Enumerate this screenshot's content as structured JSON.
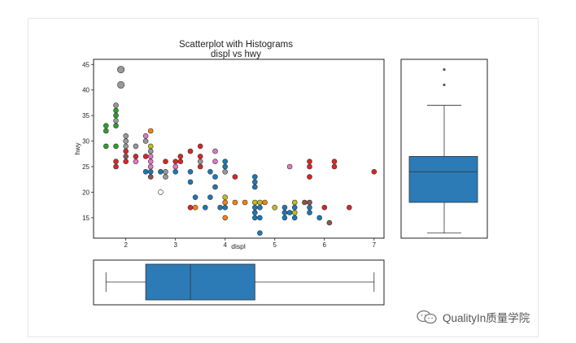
{
  "chart_data": {
    "type": "scatter",
    "title_line1": "Scatterplot with Histograms",
    "title_line2": "displ vs hwy",
    "xlabel": "displ",
    "ylabel": "hwy",
    "xlim": [
      1.35,
      7.2
    ],
    "ylim": [
      11,
      46
    ],
    "xticks": [
      2,
      3,
      4,
      5,
      6,
      7
    ],
    "yticks": [
      15,
      20,
      25,
      30,
      35,
      40,
      45
    ],
    "points": [
      {
        "x": 1.6,
        "y": 29,
        "c": "#2ca02c"
      },
      {
        "x": 1.6,
        "y": 32,
        "c": "#2ca02c"
      },
      {
        "x": 1.6,
        "y": 33,
        "c": "#2ca02c"
      },
      {
        "x": 1.8,
        "y": 29,
        "c": "#2ca02c"
      },
      {
        "x": 1.8,
        "y": 33,
        "c": "#2ca02c"
      },
      {
        "x": 1.8,
        "y": 35,
        "c": "#2ca02c"
      },
      {
        "x": 1.8,
        "y": 36,
        "c": "#2ca02c"
      },
      {
        "x": 1.8,
        "y": 26,
        "c": "#d62728"
      },
      {
        "x": 1.8,
        "y": 25,
        "c": "#d62728"
      },
      {
        "x": 1.8,
        "y": 34,
        "c": "#999999"
      },
      {
        "x": 1.8,
        "y": 37,
        "c": "#999999"
      },
      {
        "x": 1.9,
        "y": 44,
        "c": "#999999"
      },
      {
        "x": 1.9,
        "y": 41,
        "c": "#999999"
      },
      {
        "x": 2.0,
        "y": 26,
        "c": "#d62728"
      },
      {
        "x": 2.0,
        "y": 28,
        "c": "#d62728"
      },
      {
        "x": 2.0,
        "y": 30,
        "c": "#999999"
      },
      {
        "x": 2.0,
        "y": 31,
        "c": "#999999"
      },
      {
        "x": 2.0,
        "y": 29,
        "c": "#999999"
      },
      {
        "x": 2.0,
        "y": 27,
        "c": "#8c564b"
      },
      {
        "x": 2.2,
        "y": 26,
        "c": "#e377c2"
      },
      {
        "x": 2.2,
        "y": 27,
        "c": "#d62728"
      },
      {
        "x": 2.2,
        "y": 29,
        "c": "#999999"
      },
      {
        "x": 2.4,
        "y": 24,
        "c": "#1f77b4"
      },
      {
        "x": 2.4,
        "y": 27,
        "c": "#d62728"
      },
      {
        "x": 2.4,
        "y": 30,
        "c": "#999999"
      },
      {
        "x": 2.4,
        "y": 31,
        "c": "#e377c2"
      },
      {
        "x": 2.5,
        "y": 25,
        "c": "#e377c2"
      },
      {
        "x": 2.5,
        "y": 26,
        "c": "#e377c2"
      },
      {
        "x": 2.5,
        "y": 27,
        "c": "#e377c2"
      },
      {
        "x": 2.5,
        "y": 28,
        "c": "#999999"
      },
      {
        "x": 2.5,
        "y": 32,
        "c": "#ff7f0e"
      },
      {
        "x": 2.5,
        "y": 29,
        "c": "#bcbd22"
      },
      {
        "x": 2.5,
        "y": 24,
        "c": "#1f77b4"
      },
      {
        "x": 2.5,
        "y": 23,
        "c": "#8c564b"
      },
      {
        "x": 2.7,
        "y": 24,
        "c": "#1f77b4"
      },
      {
        "x": 2.7,
        "y": 20,
        "c": "#ffffff"
      },
      {
        "x": 2.8,
        "y": 26,
        "c": "#d62728"
      },
      {
        "x": 2.8,
        "y": 23,
        "c": "#999999"
      },
      {
        "x": 2.8,
        "y": 24,
        "c": "#999999"
      },
      {
        "x": 3.0,
        "y": 26,
        "c": "#d62728"
      },
      {
        "x": 3.0,
        "y": 24,
        "c": "#1f77b4"
      },
      {
        "x": 3.0,
        "y": 25,
        "c": "#e377c2"
      },
      {
        "x": 3.1,
        "y": 27,
        "c": "#d62728"
      },
      {
        "x": 3.1,
        "y": 26,
        "c": "#d62728"
      },
      {
        "x": 3.3,
        "y": 28,
        "c": "#d62728"
      },
      {
        "x": 3.3,
        "y": 24,
        "c": "#1f77b4"
      },
      {
        "x": 3.3,
        "y": 22,
        "c": "#1f77b4"
      },
      {
        "x": 3.3,
        "y": 17,
        "c": "#d62728"
      },
      {
        "x": 3.4,
        "y": 17,
        "c": "#ff7f0e"
      },
      {
        "x": 3.4,
        "y": 19,
        "c": "#1f77b4"
      },
      {
        "x": 3.5,
        "y": 29,
        "c": "#d62728"
      },
      {
        "x": 3.5,
        "y": 27,
        "c": "#d62728"
      },
      {
        "x": 3.5,
        "y": 26,
        "c": "#999999"
      },
      {
        "x": 3.5,
        "y": 25,
        "c": "#d62728"
      },
      {
        "x": 3.6,
        "y": 17,
        "c": "#1f77b4"
      },
      {
        "x": 3.7,
        "y": 19,
        "c": "#1f77b4"
      },
      {
        "x": 3.7,
        "y": 24,
        "c": "#1f77b4"
      },
      {
        "x": 3.8,
        "y": 28,
        "c": "#e377c2"
      },
      {
        "x": 3.8,
        "y": 26,
        "c": "#e377c2"
      },
      {
        "x": 3.8,
        "y": 23,
        "c": "#1f77b4"
      },
      {
        "x": 3.8,
        "y": 21,
        "c": "#1f77b4"
      },
      {
        "x": 3.9,
        "y": 17,
        "c": "#1f77b4"
      },
      {
        "x": 4.0,
        "y": 17,
        "c": "#1f77b4"
      },
      {
        "x": 4.0,
        "y": 19,
        "c": "#bcbd22"
      },
      {
        "x": 4.0,
        "y": 18,
        "c": "#ff7f0e"
      },
      {
        "x": 4.0,
        "y": 25,
        "c": "#1f77b4"
      },
      {
        "x": 4.0,
        "y": 24,
        "c": "#999999"
      },
      {
        "x": 4.0,
        "y": 26,
        "c": "#1f77b4"
      },
      {
        "x": 4.0,
        "y": 15,
        "c": "#ff7f0e"
      },
      {
        "x": 4.2,
        "y": 18,
        "c": "#ff7f0e"
      },
      {
        "x": 4.2,
        "y": 23,
        "c": "#d62728"
      },
      {
        "x": 4.4,
        "y": 18,
        "c": "#ff7f0e"
      },
      {
        "x": 4.6,
        "y": 17,
        "c": "#1f77b4"
      },
      {
        "x": 4.6,
        "y": 16,
        "c": "#1f77b4"
      },
      {
        "x": 4.6,
        "y": 15,
        "c": "#1f77b4"
      },
      {
        "x": 4.6,
        "y": 18,
        "c": "#bcbd22"
      },
      {
        "x": 4.6,
        "y": 21,
        "c": "#1f77b4"
      },
      {
        "x": 4.6,
        "y": 22,
        "c": "#1f77b4"
      },
      {
        "x": 4.6,
        "y": 23,
        "c": "#1f77b4"
      },
      {
        "x": 4.7,
        "y": 18,
        "c": "#bcbd22"
      },
      {
        "x": 4.7,
        "y": 17,
        "c": "#1f77b4"
      },
      {
        "x": 4.7,
        "y": 15,
        "c": "#1f77b4"
      },
      {
        "x": 4.7,
        "y": 12,
        "c": "#1f77b4"
      },
      {
        "x": 4.8,
        "y": 18,
        "c": "#ff7f0e"
      },
      {
        "x": 5.0,
        "y": 17,
        "c": "#bcbd22"
      },
      {
        "x": 5.2,
        "y": 16,
        "c": "#1f77b4"
      },
      {
        "x": 5.2,
        "y": 15,
        "c": "#1f77b4"
      },
      {
        "x": 5.2,
        "y": 17,
        "c": "#1f77b4"
      },
      {
        "x": 5.3,
        "y": 16,
        "c": "#1f77b4"
      },
      {
        "x": 5.3,
        "y": 25,
        "c": "#e377c2"
      },
      {
        "x": 5.4,
        "y": 17,
        "c": "#1f77b4"
      },
      {
        "x": 5.4,
        "y": 16,
        "c": "#bcbd22"
      },
      {
        "x": 5.4,
        "y": 18,
        "c": "#bcbd22"
      },
      {
        "x": 5.4,
        "y": 15,
        "c": "#1f77b4"
      },
      {
        "x": 5.6,
        "y": 18,
        "c": "#8c564b"
      },
      {
        "x": 5.7,
        "y": 17,
        "c": "#1f77b4"
      },
      {
        "x": 5.7,
        "y": 16,
        "c": "#1f77b4"
      },
      {
        "x": 5.7,
        "y": 23,
        "c": "#d62728"
      },
      {
        "x": 5.7,
        "y": 25,
        "c": "#d62728"
      },
      {
        "x": 5.7,
        "y": 26,
        "c": "#d62728"
      },
      {
        "x": 5.7,
        "y": 18,
        "c": "#8c564b"
      },
      {
        "x": 5.9,
        "y": 15,
        "c": "#1f77b4"
      },
      {
        "x": 6.0,
        "y": 17,
        "c": "#d62728"
      },
      {
        "x": 6.1,
        "y": 14,
        "c": "#8c564b"
      },
      {
        "x": 6.2,
        "y": 25,
        "c": "#d62728"
      },
      {
        "x": 6.2,
        "y": 26,
        "c": "#d62728"
      },
      {
        "x": 6.5,
        "y": 17,
        "c": "#d62728"
      },
      {
        "x": 7.0,
        "y": 24,
        "c": "#d62728"
      }
    ],
    "boxplot_hwy": {
      "min": 12,
      "q1": 18,
      "median": 24,
      "q3": 27,
      "max": 37,
      "outliers": [
        41,
        44
      ]
    },
    "boxplot_displ": {
      "min": 1.6,
      "q1": 2.4,
      "median": 3.3,
      "q3": 4.6,
      "max": 7.0,
      "outliers": []
    },
    "box_color": "#2c7bb6",
    "grid": false
  },
  "watermark": {
    "text": "QualityIn质量学院",
    "icon": "wechat-icon"
  }
}
